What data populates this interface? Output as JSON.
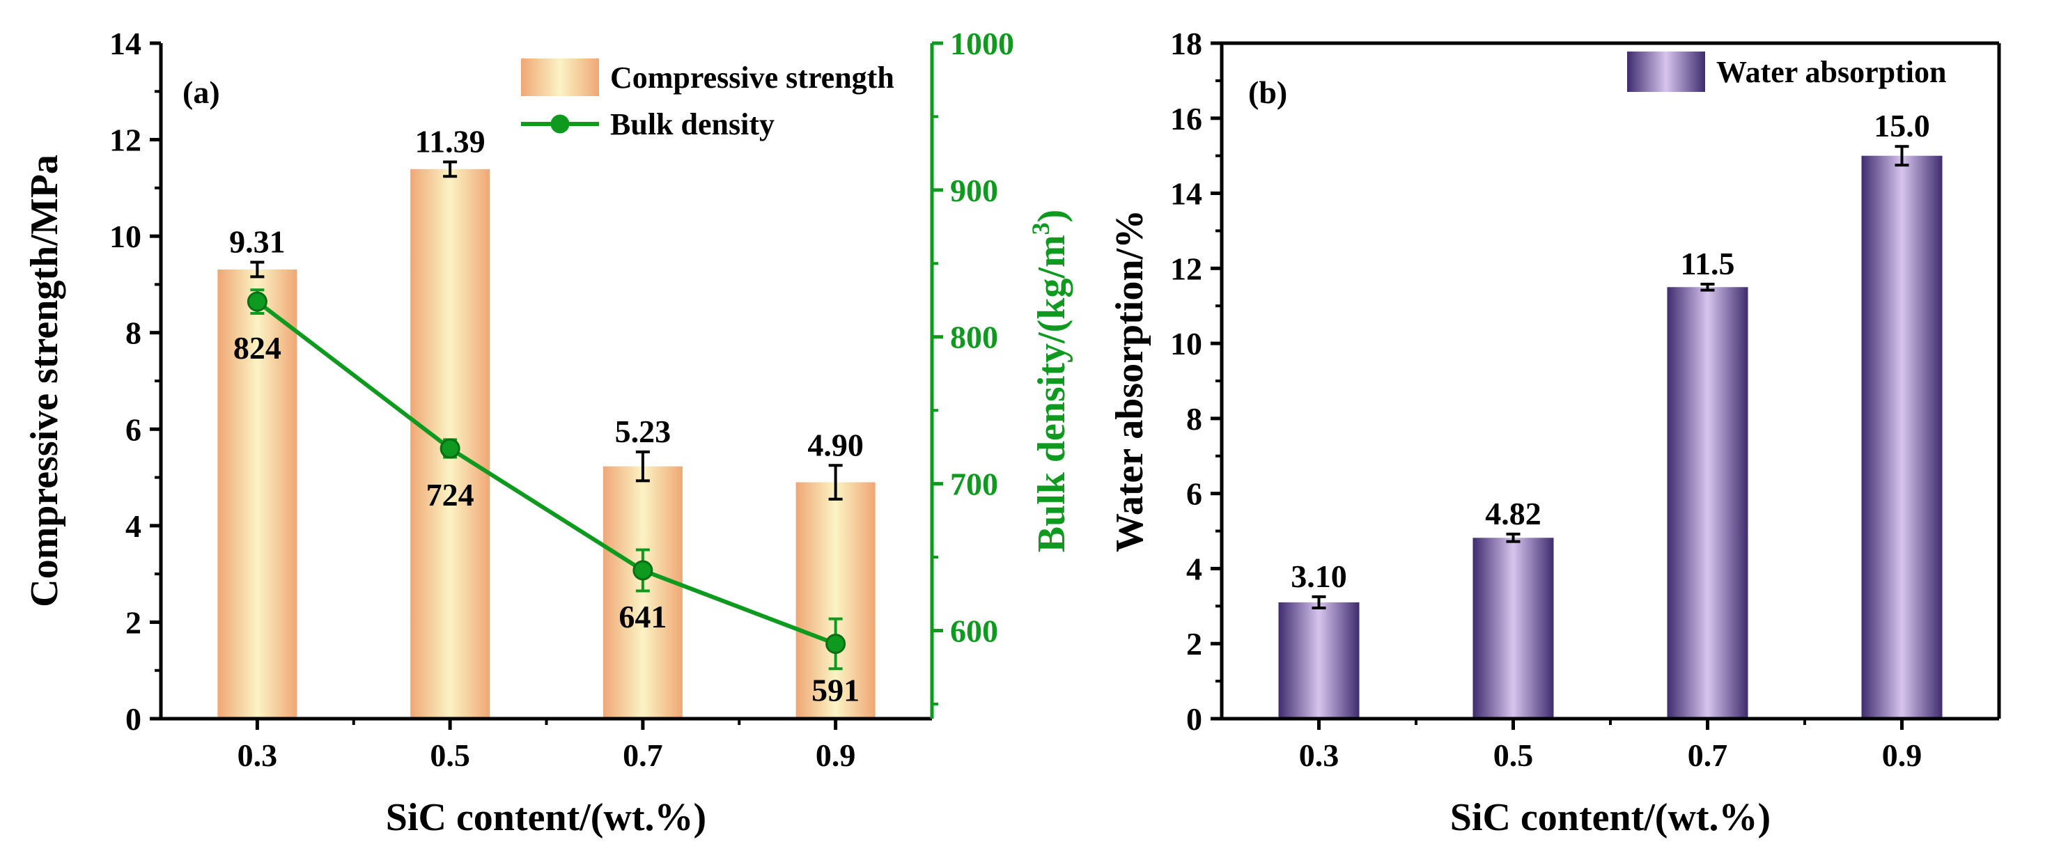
{
  "colors": {
    "bar_a_edge": "#F0A775",
    "bar_a_center": "#FBF3C4",
    "line_green": "#0E9A1E",
    "bar_b_edge": "#3F2C6E",
    "bar_b_center": "#D7C4EE",
    "axis": "#000000"
  },
  "chart_data": [
    {
      "type": "bar",
      "panel_label": "(a)",
      "categories": [
        "0.3",
        "0.5",
        "0.7",
        "0.9"
      ],
      "xlabel": "SiC content/(wt.%)",
      "ylabel": "Compressive strength/MPa",
      "ylim": [
        0,
        14
      ],
      "yticks": [
        "0",
        "2",
        "4",
        "6",
        "8",
        "10",
        "12",
        "14"
      ],
      "y2label_main": "Bulk density/(kg/m",
      "y2label_sup": "3",
      "y2label_close": ")",
      "y2lim": [
        540,
        1000
      ],
      "y2ticks": [
        "600",
        "700",
        "800",
        "900",
        "1000"
      ],
      "legend_position": "top-right",
      "series": [
        {
          "name": "Compressive strength",
          "kind": "bar",
          "axis": "left",
          "values": [
            9.31,
            11.39,
            5.23,
            4.9
          ],
          "errors": [
            0.15,
            0.15,
            0.3,
            0.35
          ],
          "labels": [
            "9.31",
            "11.39",
            "5.23",
            "4.90"
          ]
        },
        {
          "name": "Bulk density",
          "kind": "line",
          "axis": "right",
          "values": [
            824,
            724,
            641,
            591
          ],
          "errors": [
            8,
            6,
            14,
            17
          ],
          "labels": [
            "824",
            "724",
            "641",
            "591"
          ]
        }
      ]
    },
    {
      "type": "bar",
      "panel_label": "(b)",
      "categories": [
        "0.3",
        "0.5",
        "0.7",
        "0.9"
      ],
      "xlabel": "SiC content/(wt.%)",
      "ylabel": "Water absorption/%",
      "ylim": [
        0,
        18
      ],
      "yticks": [
        "0",
        "2",
        "4",
        "6",
        "8",
        "10",
        "12",
        "14",
        "16",
        "18"
      ],
      "legend_position": "top-right",
      "series": [
        {
          "name": "Water absorption",
          "kind": "bar",
          "axis": "left",
          "values": [
            3.1,
            4.82,
            11.5,
            15.0
          ],
          "errors": [
            0.15,
            0.1,
            0.08,
            0.25
          ],
          "labels": [
            "3.10",
            "4.82",
            "11.5",
            "15.0"
          ]
        }
      ]
    }
  ]
}
